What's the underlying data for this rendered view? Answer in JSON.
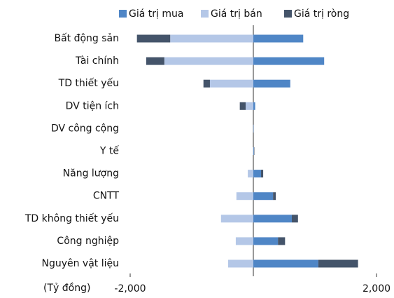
{
  "chart_data": {
    "type": "diverging-bar",
    "axis_label": "(Tỷ đồng)",
    "categories": [
      "Bất động sản",
      "Tài chính",
      "TD thiết yếu",
      "DV tiện ích",
      "DV công cộng",
      "Y tế",
      "Năng lượng",
      "CNTT",
      "TD không thiết yếu",
      "Công nghiệp",
      "Nguyên vật liệu"
    ],
    "series": [
      {
        "name": "Giá trị mua",
        "color": "#4f86c6",
        "values": [
          810,
          1150,
          600,
          30,
          2,
          10,
          125,
          320,
          625,
          400,
          1055
        ]
      },
      {
        "name": "Giá trị bán",
        "color": "#b4c7e7",
        "values": [
          -1350,
          -1445,
          -705,
          -125,
          -3,
          -5,
          -90,
          -275,
          -525,
          -285,
          -410
        ]
      },
      {
        "name": "Giá trị ròng",
        "color": "#44546a",
        "values": [
          -540,
          -295,
          -105,
          -95,
          -1,
          5,
          35,
          45,
          100,
          115,
          645
        ]
      }
    ],
    "xlim": [
      -2000,
      2000
    ],
    "xticks": [
      {
        "value": -2000,
        "label": "-2,000"
      },
      {
        "value": 2000,
        "label": "2,000"
      }
    ],
    "legend": "top"
  }
}
